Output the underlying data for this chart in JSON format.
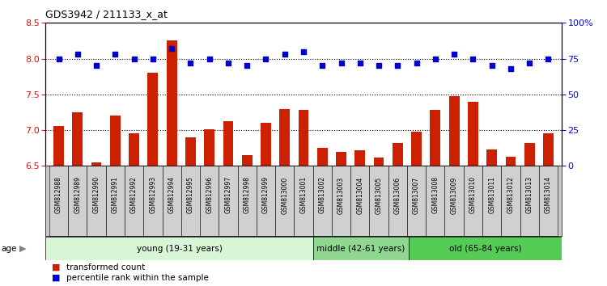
{
  "title": "GDS3942 / 211133_x_at",
  "samples": [
    "GSM812988",
    "GSM812989",
    "GSM812990",
    "GSM812991",
    "GSM812992",
    "GSM812993",
    "GSM812994",
    "GSM812995",
    "GSM812996",
    "GSM812997",
    "GSM812998",
    "GSM812999",
    "GSM813000",
    "GSM813001",
    "GSM813002",
    "GSM813003",
    "GSM813004",
    "GSM813005",
    "GSM813006",
    "GSM813007",
    "GSM813008",
    "GSM813009",
    "GSM813010",
    "GSM813011",
    "GSM813012",
    "GSM813013",
    "GSM813014"
  ],
  "bar_values": [
    7.06,
    7.25,
    6.55,
    7.2,
    6.95,
    7.8,
    8.25,
    6.9,
    7.01,
    7.12,
    6.65,
    7.1,
    7.3,
    7.28,
    6.75,
    6.7,
    6.72,
    6.62,
    6.82,
    6.98,
    7.28,
    7.48,
    7.4,
    6.73,
    6.63,
    6.82,
    6.95
  ],
  "dot_values": [
    75,
    78,
    70,
    78,
    75,
    75,
    82,
    72,
    75,
    72,
    70,
    75,
    78,
    80,
    70,
    72,
    72,
    70,
    70,
    72,
    75,
    78,
    75,
    70,
    68,
    72,
    75
  ],
  "age_groups": [
    {
      "label": "young (19-31 years)",
      "start": 0,
      "end": 14,
      "color": "#d8f5d8"
    },
    {
      "label": "middle (42-61 years)",
      "start": 14,
      "end": 19,
      "color": "#90d890"
    },
    {
      "label": "old (65-84 years)",
      "start": 19,
      "end": 27,
      "color": "#55cc55"
    }
  ],
  "ylim_left": [
    6.5,
    8.5
  ],
  "ylim_right": [
    0,
    100
  ],
  "yticks_left": [
    6.5,
    7.0,
    7.5,
    8.0,
    8.5
  ],
  "yticks_right": [
    0,
    25,
    50,
    75,
    100
  ],
  "bar_color": "#cc2000",
  "dot_color": "#0000cc",
  "background_plot": "#ffffff",
  "label_box_color": "#c8c8c8",
  "gridline_color": "#000000",
  "legend_items": [
    {
      "label": "transformed count",
      "color": "#cc2000"
    },
    {
      "label": "percentile rank within the sample",
      "color": "#0000cc"
    }
  ]
}
